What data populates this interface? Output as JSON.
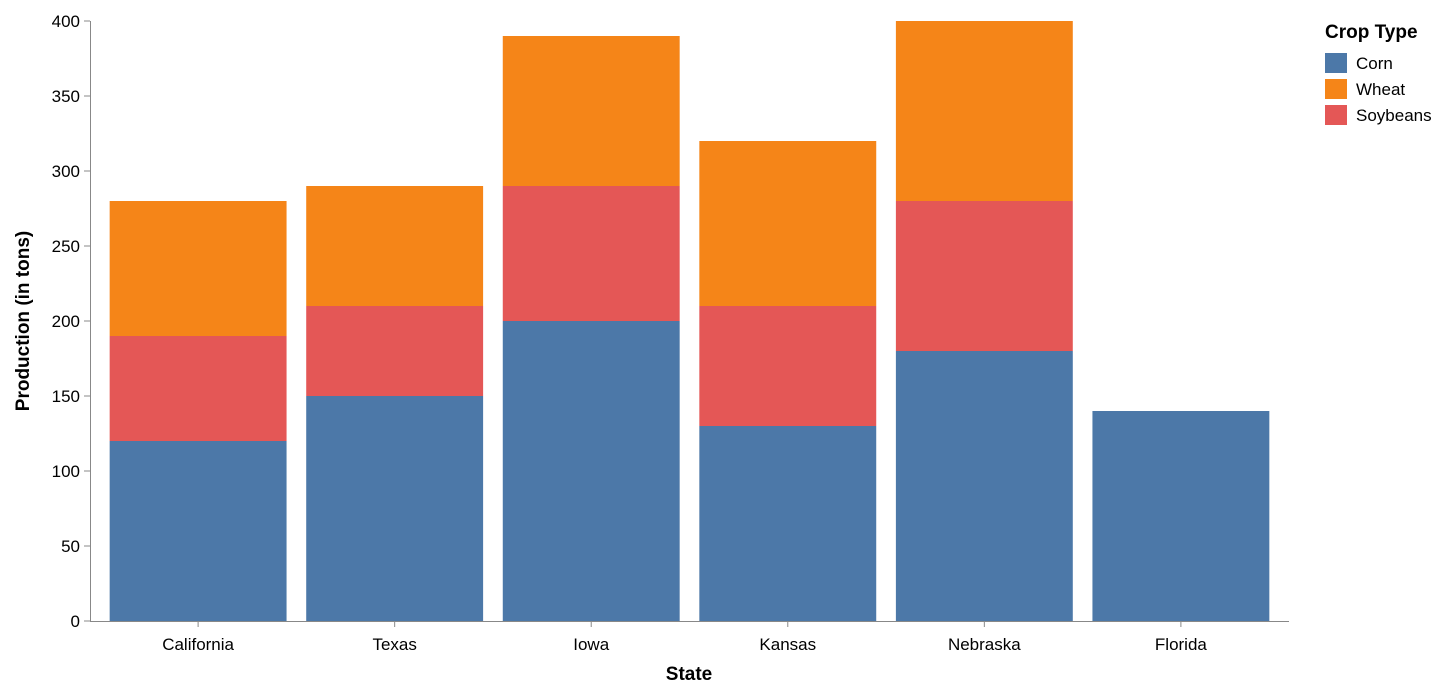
{
  "chart_data": {
    "type": "bar",
    "stacked": true,
    "categories": [
      "California",
      "Texas",
      "Iowa",
      "Kansas",
      "Nebraska",
      "Florida"
    ],
    "series": [
      {
        "name": "Corn",
        "values": [
          120,
          150,
          200,
          130,
          180,
          140
        ],
        "color": "#4c78a8"
      },
      {
        "name": "Soybeans",
        "values": [
          70,
          60,
          90,
          80,
          100,
          0
        ],
        "color": "#e45756"
      },
      {
        "name": "Wheat",
        "values": [
          90,
          80,
          100,
          110,
          120,
          0
        ],
        "color": "#f58518"
      }
    ],
    "stack_order": [
      "Corn",
      "Soybeans",
      "Wheat"
    ],
    "xlabel": "State",
    "ylabel": "Production (in tons)",
    "ylim": [
      0,
      400
    ],
    "yticks": [
      0,
      50,
      100,
      150,
      200,
      250,
      300,
      350,
      400
    ],
    "grid": false,
    "legend": {
      "title": "Crop Type",
      "placement": "top-right",
      "entries": [
        {
          "label": "Corn",
          "color": "#4c78a8"
        },
        {
          "label": "Wheat",
          "color": "#f58518"
        },
        {
          "label": "Soybeans",
          "color": "#e45756"
        }
      ]
    }
  }
}
